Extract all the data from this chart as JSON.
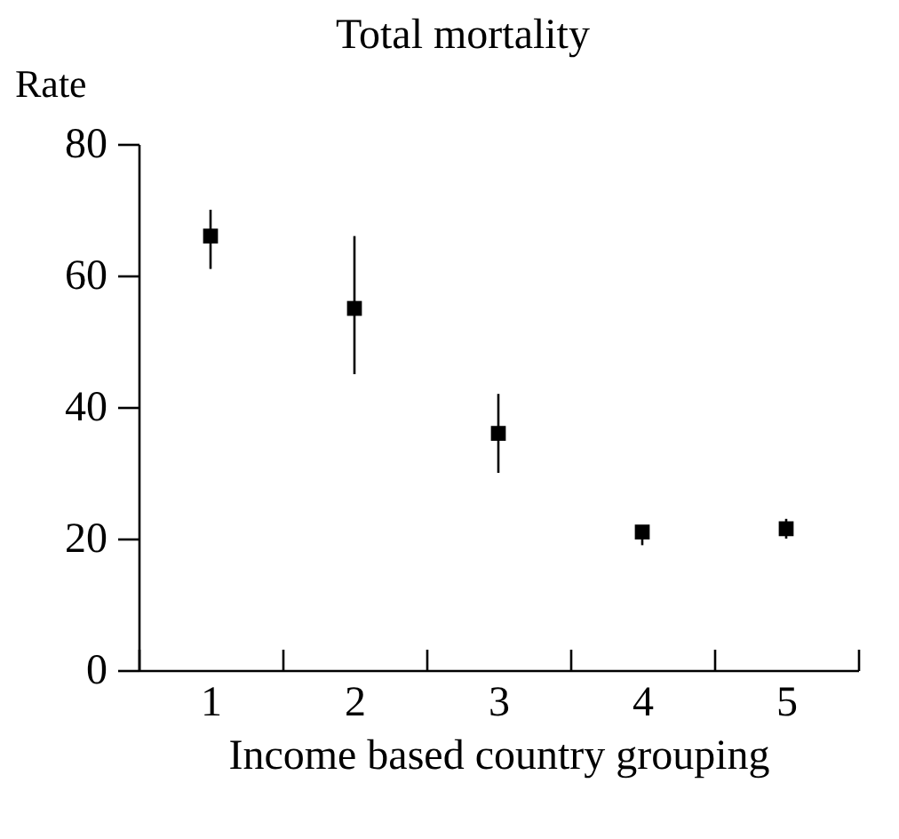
{
  "chart_data": {
    "type": "scatter",
    "title": "Total mortality",
    "xlabel": "Income based country grouping",
    "ylabel": "Rate",
    "categories": [
      "1",
      "2",
      "3",
      "4",
      "5"
    ],
    "values": [
      66,
      55,
      36,
      21,
      21.5
    ],
    "errors": [
      [
        61,
        70
      ],
      [
        45,
        66
      ],
      [
        30,
        42
      ],
      [
        19,
        22
      ],
      [
        20,
        23
      ]
    ],
    "color": "#000000",
    "marker": "square",
    "ylim": [
      0,
      80
    ],
    "yticks": [
      0,
      20,
      40,
      60,
      80
    ],
    "grid": false
  }
}
